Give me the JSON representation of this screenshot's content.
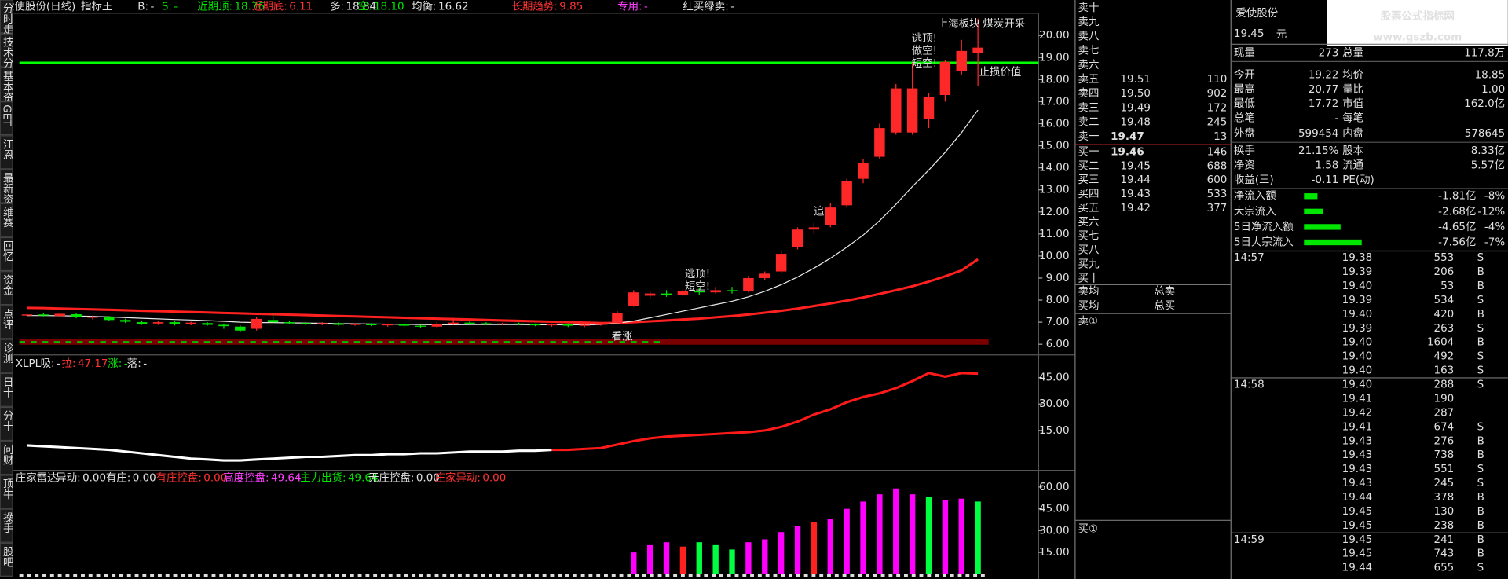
{
  "top_bar": {
    "title": "爱使股份(日线)",
    "indicator": "指标王",
    "items": [
      {
        "label": "B:",
        "value": "-",
        "color": "#e0e0e0"
      },
      {
        "label": "S:",
        "value": "-",
        "color": "#00e600"
      },
      {
        "label": "近期顶:",
        "value": "18.76",
        "color": "#00e600"
      },
      {
        "label": "近期底:",
        "value": "6.11",
        "color": "#ff3232"
      },
      {
        "label": "多:",
        "value": "18.84",
        "color": "#e0e0e0"
      },
      {
        "label": "空:",
        "value": "18.10",
        "color": "#00e600"
      },
      {
        "label": "均衡:",
        "value": "16.62",
        "color": "#e0e0e0"
      },
      {
        "label": "长期趋势:",
        "value": "9.85",
        "color": "#ff3232"
      },
      {
        "label": "专用:",
        "value": "-",
        "color": "#ff40ff"
      },
      {
        "label": "红买绿卖:",
        "value": "-",
        "color": "#e0e0e0"
      }
    ]
  },
  "left_tabs": [
    "分时走势",
    "技术分析",
    "基本资料",
    "GET",
    "江恩",
    "最新资讯",
    "维赛",
    "回忆",
    "资金",
    "点评",
    "诊测",
    "日十",
    "分十",
    "问财",
    "顶牛",
    "操手",
    "股吧"
  ],
  "main_chart": {
    "type": "candlestick",
    "ylim": [
      5.56,
      21.0
    ],
    "yticks": [
      {
        "value": 20,
        "label": "20.00"
      },
      {
        "value": 19,
        "label": "19.00"
      },
      {
        "value": 18,
        "label": "18.00"
      },
      {
        "value": 17,
        "label": "17.00"
      },
      {
        "value": 16,
        "label": "16.00"
      },
      {
        "value": 15,
        "label": "15.00"
      },
      {
        "value": 14,
        "label": "14.00"
      },
      {
        "value": 13,
        "label": "13.00"
      },
      {
        "value": 12,
        "label": "12.00"
      },
      {
        "value": 11,
        "label": "11.00"
      },
      {
        "value": 10,
        "label": "10.00"
      },
      {
        "value": 9,
        "label": "9.00"
      },
      {
        "value": 8,
        "label": "8.00"
      },
      {
        "value": 7,
        "label": "7.00"
      },
      {
        "value": 6,
        "label": "6.00"
      }
    ],
    "up_color": "#ff2828",
    "down_color": "#00e600",
    "candles": [
      [
        7.3,
        7.35,
        7.4,
        7.25
      ],
      [
        7.35,
        7.3,
        7.42,
        7.26
      ],
      [
        7.28,
        7.38,
        7.42,
        7.22
      ],
      [
        7.36,
        7.22,
        7.4,
        7.18
      ],
      [
        7.2,
        7.25,
        7.3,
        7.12
      ],
      [
        7.24,
        7.1,
        7.28,
        7.05
      ],
      [
        7.1,
        7.02,
        7.16,
        6.96
      ],
      [
        7.0,
        6.92,
        7.05,
        6.88
      ],
      [
        6.94,
        7.0,
        7.06,
        6.88
      ],
      [
        7.0,
        6.9,
        7.04,
        6.85
      ],
      [
        6.92,
        6.98,
        7.02,
        6.86
      ],
      [
        6.96,
        6.88,
        7.0,
        6.84
      ],
      [
        6.88,
        6.82,
        6.94,
        6.7
      ],
      [
        6.8,
        6.62,
        6.86,
        6.55
      ],
      [
        6.7,
        7.15,
        7.25,
        6.62
      ],
      [
        7.1,
        7.0,
        7.4,
        6.95
      ],
      [
        7.0,
        6.95,
        7.05,
        6.9
      ],
      [
        6.96,
        6.9,
        7.0,
        6.86
      ],
      [
        6.9,
        6.96,
        7.0,
        6.86
      ],
      [
        6.95,
        6.88,
        7.0,
        6.84
      ],
      [
        6.88,
        6.92,
        6.96,
        6.84
      ],
      [
        6.92,
        6.86,
        6.95,
        6.82
      ],
      [
        6.86,
        6.9,
        6.94,
        6.8
      ],
      [
        6.9,
        6.84,
        6.94,
        6.78
      ],
      [
        6.84,
        6.8,
        6.88,
        6.72
      ],
      [
        6.8,
        6.92,
        7.0,
        6.76
      ],
      [
        6.92,
        6.98,
        7.2,
        6.88
      ],
      [
        6.98,
        6.95,
        7.05,
        6.9
      ],
      [
        6.95,
        6.9,
        7.0,
        6.86
      ],
      [
        6.9,
        6.94,
        6.98,
        6.86
      ],
      [
        6.94,
        6.9,
        6.98,
        6.86
      ],
      [
        6.9,
        6.86,
        6.94,
        6.82
      ],
      [
        6.86,
        6.9,
        6.94,
        6.8
      ],
      [
        6.9,
        6.84,
        6.94,
        6.78
      ],
      [
        6.84,
        6.88,
        6.92,
        6.78
      ],
      [
        6.88,
        6.94,
        6.98,
        6.84
      ],
      [
        6.95,
        7.4,
        7.5,
        6.9
      ],
      [
        7.75,
        8.35,
        8.45,
        7.7
      ],
      [
        8.2,
        8.3,
        8.4,
        8.1
      ],
      [
        8.3,
        8.25,
        8.45,
        8.15
      ],
      [
        8.25,
        8.4,
        8.5,
        8.2
      ],
      [
        8.4,
        8.35,
        8.55,
        8.25
      ],
      [
        8.35,
        8.45,
        8.6,
        8.3
      ],
      [
        8.45,
        8.4,
        8.6,
        8.3
      ],
      [
        8.4,
        9.0,
        9.1,
        8.35
      ],
      [
        9.0,
        9.2,
        9.3,
        8.9
      ],
      [
        9.3,
        10.1,
        10.2,
        9.2
      ],
      [
        10.4,
        11.2,
        11.3,
        10.3
      ],
      [
        11.2,
        11.3,
        11.5,
        11.0
      ],
      [
        11.4,
        12.2,
        12.4,
        11.3
      ],
      [
        12.3,
        13.4,
        13.5,
        12.2
      ],
      [
        13.5,
        14.2,
        14.4,
        13.3
      ],
      [
        14.5,
        15.8,
        16.0,
        14.4
      ],
      [
        15.6,
        17.6,
        17.8,
        15.5
      ],
      [
        15.6,
        17.6,
        18.8,
        15.5
      ],
      [
        16.2,
        17.2,
        17.4,
        15.8
      ],
      [
        17.3,
        18.8,
        18.9,
        17.0
      ],
      [
        18.4,
        19.3,
        19.8,
        18.2
      ],
      [
        19.22,
        19.45,
        20.77,
        17.72
      ]
    ],
    "lines": [
      {
        "color": "#ff2020",
        "values": [
          7.65,
          7.64,
          7.62,
          7.6,
          7.58,
          7.56,
          7.54,
          7.52,
          7.5,
          7.48,
          7.46,
          7.44,
          7.42,
          7.4,
          7.38,
          7.36,
          7.34,
          7.32,
          7.3,
          7.28,
          7.26,
          7.24,
          7.22,
          7.2,
          7.18,
          7.16,
          7.14,
          7.12,
          7.1,
          7.08,
          7.06,
          7.04,
          7.02,
          7.0,
          6.98,
          6.96,
          6.97,
          7.0,
          7.04,
          7.08,
          7.12,
          7.16,
          7.22,
          7.28,
          7.35,
          7.43,
          7.52,
          7.62,
          7.73,
          7.85,
          7.98,
          8.12,
          8.28,
          8.45,
          8.63,
          8.84,
          9.08,
          9.35,
          9.85
        ]
      },
      {
        "color": "#e8e8e8",
        "values": [
          7.3,
          7.3,
          7.29,
          7.28,
          7.26,
          7.24,
          7.21,
          7.18,
          7.15,
          7.12,
          7.1,
          7.07,
          7.04,
          7.0,
          6.98,
          6.98,
          6.97,
          6.96,
          6.95,
          6.94,
          6.93,
          6.92,
          6.91,
          6.9,
          6.89,
          6.88,
          6.88,
          6.89,
          6.89,
          6.89,
          6.89,
          6.88,
          6.88,
          6.88,
          6.88,
          6.89,
          6.95,
          7.05,
          7.2,
          7.35,
          7.5,
          7.65,
          7.8,
          7.95,
          8.15,
          8.4,
          8.7,
          9.05,
          9.45,
          9.9,
          10.4,
          10.95,
          11.6,
          12.35,
          13.15,
          13.9,
          14.7,
          15.6,
          16.62
        ]
      }
    ],
    "annotations": [
      "上海板块",
      "煤炭开采",
      "逃顶!",
      "做空!",
      "短空!",
      "止损价值",
      "逃顶!",
      "短空!",
      "追",
      "看涨"
    ]
  },
  "xlpl_chart": {
    "type": "line",
    "name": "XLPL",
    "items": [
      {
        "label": "吸:",
        "value": "-",
        "color": "#e0e0e0"
      },
      {
        "label": "拉:",
        "value": "47.17",
        "color": "#ff3232"
      },
      {
        "label": "涨:",
        "value": "-",
        "color": "#00e600"
      },
      {
        "label": "落:",
        "value": "-",
        "color": "#e0e0e0"
      }
    ],
    "ylim": [
      -7.1,
      56.2
    ],
    "yticks": [
      {
        "value": 45,
        "label": "45.00"
      },
      {
        "value": 30,
        "label": "30.00"
      },
      {
        "value": 15,
        "label": "15.00"
      }
    ],
    "series": [
      {
        "color": "#ffffff",
        "values": [
          6.5,
          6,
          5.5,
          5,
          4.5,
          4,
          3,
          2,
          1,
          0,
          -1,
          -1.5,
          -2,
          -2,
          -1.5,
          -1,
          -0.5,
          0,
          0,
          0.5,
          1,
          1,
          1.5,
          1.5,
          2,
          2,
          2.5,
          3,
          3,
          3,
          3.5,
          3.5,
          4,
          null,
          null,
          null,
          null,
          null,
          null,
          null,
          null,
          null,
          null,
          null,
          null,
          null,
          null,
          null,
          null,
          null,
          null,
          null,
          null,
          null,
          null,
          null,
          null,
          null,
          null
        ]
      },
      {
        "color": "#ff1a1a",
        "values": [
          null,
          null,
          null,
          null,
          null,
          null,
          null,
          null,
          null,
          null,
          null,
          null,
          null,
          null,
          null,
          null,
          null,
          null,
          null,
          null,
          null,
          null,
          null,
          null,
          null,
          null,
          null,
          null,
          null,
          null,
          null,
          null,
          4,
          4,
          4.5,
          5,
          7,
          9,
          10.5,
          11.5,
          12,
          12.5,
          13,
          13.5,
          14,
          15,
          17,
          20,
          24,
          27,
          31,
          34,
          36,
          39,
          43,
          47.5,
          45.5,
          47.5,
          47.17
        ]
      }
    ]
  },
  "radar_chart": {
    "type": "bar",
    "title": "庄家雷达",
    "items": [
      {
        "label": "异动:",
        "value": "0.00",
        "color": "#e0e0e0"
      },
      {
        "label": "有庄:",
        "value": "0.00",
        "color": "#e0e0e0"
      },
      {
        "label": "有庄控盘:",
        "value": "0.00",
        "color": "#ff3232"
      },
      {
        "label": "高度控盘:",
        "value": "49.64",
        "color": "#ff40ff"
      },
      {
        "label": "主力出货:",
        "value": "49.64",
        "color": "#00e600"
      },
      {
        "label": "无庄控盘:",
        "value": "0.00",
        "color": "#e0e0e0"
      },
      {
        "label": "庄家异动:",
        "value": "0.00",
        "color": "#ff3232"
      }
    ],
    "ylim": [
      -2,
      69.5
    ],
    "yticks": [
      {
        "value": 60,
        "label": "60.00"
      },
      {
        "value": 45,
        "label": "45.00"
      },
      {
        "value": 30,
        "label": "30.00"
      },
      {
        "value": 15,
        "label": "15.00"
      }
    ],
    "values": [
      null,
      null,
      null,
      null,
      null,
      null,
      null,
      null,
      null,
      null,
      null,
      null,
      null,
      null,
      null,
      null,
      null,
      null,
      null,
      null,
      null,
      null,
      null,
      null,
      null,
      null,
      null,
      null,
      null,
      null,
      null,
      null,
      null,
      null,
      null,
      null,
      null,
      15,
      20,
      22,
      19,
      22,
      20,
      17,
      22,
      24,
      29,
      33,
      36,
      38,
      45,
      50,
      55,
      59,
      55,
      53,
      51,
      52,
      50
    ],
    "colors": [
      null,
      null,
      null,
      null,
      null,
      null,
      null,
      null,
      null,
      null,
      null,
      null,
      null,
      null,
      null,
      null,
      null,
      null,
      null,
      null,
      null,
      null,
      null,
      null,
      null,
      null,
      null,
      null,
      null,
      null,
      null,
      null,
      null,
      null,
      null,
      null,
      null,
      "#ff00ff",
      "#ff00ff",
      "#ff00ff",
      "#ff2020",
      "#00ff40",
      "#00ff40",
      "#00ff40",
      "#ff00ff",
      "#ff00ff",
      "#ff00ff",
      "#ff00ff",
      "#ff2020",
      "#ff00ff",
      "#ff00ff",
      "#ff00ff",
      "#ff00ff",
      "#ff00ff",
      "#ff00ff",
      "#00ff40",
      "#ff00ff",
      "#ff00ff",
      "#00ff40"
    ]
  },
  "order_book": {
    "asks": [
      [
        "卖十"
      ],
      [
        "卖九"
      ],
      [
        "卖八"
      ],
      [
        "卖七"
      ],
      [
        "卖六"
      ],
      [
        "卖五",
        "19.51",
        "110"
      ],
      [
        "卖四",
        "19.50",
        "902"
      ],
      [
        "卖三",
        "19.49",
        "172"
      ],
      [
        "卖二",
        "19.48",
        "245"
      ],
      [
        "卖一",
        "19.47",
        "13"
      ]
    ],
    "bids": [
      [
        "买一",
        "19.46",
        "146"
      ],
      [
        "买二",
        "19.45",
        "688"
      ],
      [
        "买三",
        "19.44",
        "600"
      ],
      [
        "买四",
        "19.43",
        "533"
      ],
      [
        "买五",
        "19.42",
        "377"
      ],
      [
        "买六"
      ],
      [
        "买七"
      ],
      [
        "买八"
      ],
      [
        "买九"
      ],
      [
        "买十"
      ]
    ],
    "summary": [
      [
        "卖均",
        "总卖"
      ],
      [
        "买均",
        "总买"
      ]
    ],
    "sell_queue": "卖①",
    "buy_queue": "买①"
  },
  "quote": {
    "name": "爱使股份",
    "price": "19.45",
    "unit": "元",
    "rows": [
      [
        "现量",
        "273",
        "总量",
        "117.8万"
      ],
      [
        "今开",
        "19.22",
        "均价",
        "18.85"
      ],
      [
        "最高",
        "20.77",
        "量比",
        "1.00"
      ],
      [
        "最低",
        "17.72",
        "市值",
        "162.0亿"
      ],
      [
        "总笔",
        "-",
        "每笔"
      ],
      [
        "外盘",
        "599454",
        "内盘",
        "578645"
      ],
      [
        "换手",
        "21.15%",
        "股本",
        "8.33亿"
      ],
      [
        "净资",
        "1.58",
        "流通",
        "5.57亿"
      ],
      [
        "收益(三)",
        "-0.11",
        "PE(动)"
      ]
    ],
    "value_colors": [
      [
        "#ff3232",
        "#ffff55"
      ],
      [
        "#ff3232",
        "#ff3232"
      ],
      [
        "#ff3232",
        "#ffff55"
      ],
      [
        "#00e600",
        "#ffff55"
      ],
      [
        "#ffff55"
      ],
      [
        "#ff3232",
        "#00e600"
      ],
      [
        "#ffff55",
        "#ffff55"
      ],
      [
        "#ffff55",
        "#ffff55"
      ],
      [
        "#ffff55"
      ]
    ],
    "flows": [
      [
        "净流入额",
        "-1.81亿",
        "-8%"
      ],
      [
        "大宗流入",
        "-2.68亿",
        "-12%"
      ],
      [
        "5日净流入额",
        "-4.65亿",
        "-4%"
      ],
      [
        "5日大宗流入",
        "-7.56亿",
        "-7%"
      ]
    ]
  },
  "trades": [
    {
      "time": "14:57",
      "rows": [
        [
          "19.38",
          "553",
          "S",
          "#ff40ff"
        ],
        [
          "19.39",
          "206",
          "B",
          "#e0e0e0"
        ],
        [
          "19.40",
          "53",
          "B",
          "#e0e0e0"
        ],
        [
          "19.39",
          "534",
          "S",
          "#ff40ff"
        ],
        [
          "19.40",
          "420",
          "B",
          "#e0e0e0"
        ],
        [
          "19.39",
          "263",
          "S",
          "#e0e0e0"
        ],
        [
          "19.40",
          "1604",
          "B",
          "#ff40ff"
        ],
        [
          "19.40",
          "492",
          "S",
          "#ff40ff"
        ],
        [
          "19.40",
          "163",
          "S",
          "#e0e0e0"
        ]
      ]
    },
    {
      "time": "14:58",
      "rows": [
        [
          "19.40",
          "288",
          "S",
          "#e0e0e0"
        ],
        [
          "19.41",
          "190",
          null,
          "#e0e0e0"
        ],
        [
          "19.42",
          "287",
          null,
          "#e0e0e0"
        ],
        [
          "19.41",
          "674",
          "S",
          "#ff40ff"
        ],
        [
          "19.43",
          "276",
          "B",
          "#e0e0e0"
        ],
        [
          "19.43",
          "738",
          "B",
          "#ff40ff"
        ],
        [
          "19.43",
          "551",
          "S",
          "#ff40ff"
        ],
        [
          "19.43",
          "245",
          "S",
          "#e0e0e0"
        ],
        [
          "19.44",
          "378",
          "B",
          "#e0e0e0"
        ],
        [
          "19.45",
          "130",
          "B",
          "#e0e0e0"
        ],
        [
          "19.45",
          "238",
          "B",
          "#e0e0e0"
        ]
      ]
    },
    {
      "time": "14:59",
      "rows": [
        [
          "19.45",
          "241",
          "B",
          "#e0e0e0"
        ],
        [
          "19.45",
          "743",
          "B",
          "#ff40ff"
        ],
        [
          "19.44",
          "655",
          "S",
          "#ff40ff"
        ]
      ]
    }
  ],
  "logo": {
    "title": "股票公式指标网",
    "url": "www.gszb.com"
  }
}
